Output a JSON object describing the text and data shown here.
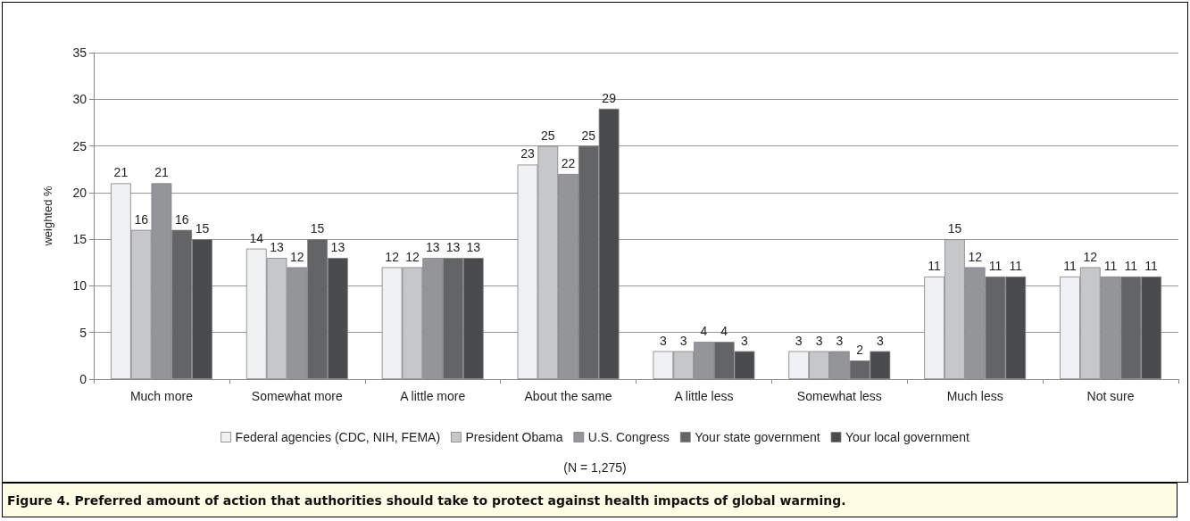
{
  "chart_data": {
    "type": "bar",
    "ylabel": "weighted %",
    "categories": [
      "Much more",
      "Somewhat more",
      "A little more",
      "About the same",
      "A little less",
      "Somewhat less",
      "Much less",
      "Not sure"
    ],
    "series": [
      {
        "name": "Federal agencies (CDC, NIH, FEMA)",
        "color": "#f0f1f3",
        "values": [
          21,
          14,
          12,
          23,
          3,
          3,
          11,
          11
        ]
      },
      {
        "name": "President Obama",
        "color": "#c6c7c9",
        "values": [
          16,
          13,
          12,
          25,
          3,
          3,
          15,
          12
        ]
      },
      {
        "name": "U.S. Congress",
        "color": "#939598",
        "values": [
          21,
          12,
          13,
          22,
          4,
          3,
          12,
          11
        ]
      },
      {
        "name": "Your state government",
        "color": "#636466",
        "values": [
          16,
          15,
          13,
          25,
          4,
          2,
          11,
          11
        ]
      },
      {
        "name": "Your local government",
        "color": "#4a4b4d",
        "values": [
          15,
          13,
          13,
          29,
          3,
          3,
          11,
          11
        ]
      }
    ],
    "ylim": [
      0,
      35
    ],
    "yticks": [
      0,
      5,
      10,
      15,
      20,
      25,
      30,
      35
    ],
    "grid": "y",
    "legend": "bottom",
    "data_labels": true,
    "annotations": [
      "(N = 1,275)",
      "Figure 4. Preferred amount of action that authorities should take to protect against health impacts of global warming."
    ]
  }
}
